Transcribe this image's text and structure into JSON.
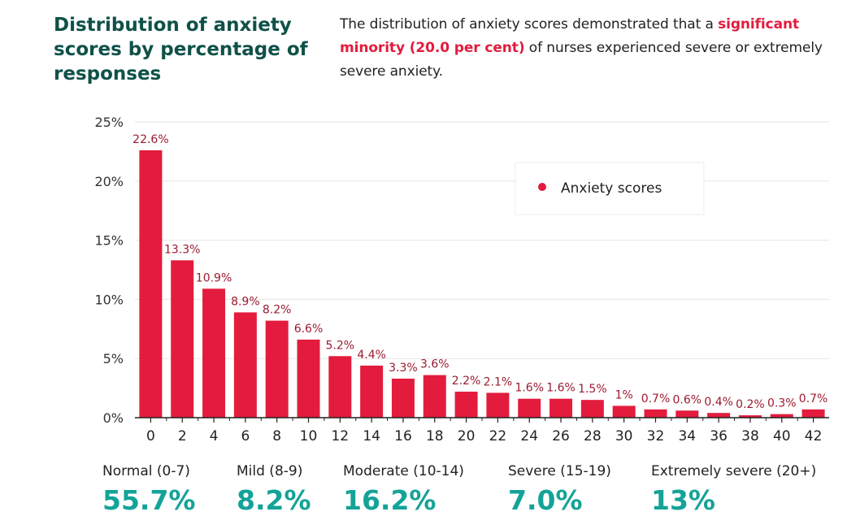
{
  "title": "Distribution of anxiety scores by percentage of responses",
  "description": {
    "before": "The distribution of anxiety scores demonstrated that a ",
    "highlight": "significant minority (20.0 per cent)",
    "after": " of nurses experienced severe or extremely severe anxiety."
  },
  "colors": {
    "bar": "#e31c3d",
    "title": "#0f5148",
    "summary_value": "#14a398",
    "label": "#9b1b2f"
  },
  "chart_data": {
    "type": "bar",
    "categories": [
      "0",
      "2",
      "4",
      "6",
      "8",
      "10",
      "12",
      "14",
      "16",
      "18",
      "20",
      "22",
      "24",
      "26",
      "28",
      "30",
      "32",
      "34",
      "36",
      "38",
      "40",
      "42"
    ],
    "series": [
      {
        "name": "Anxiety scores",
        "values": [
          22.6,
          13.3,
          10.9,
          8.9,
          8.2,
          6.6,
          5.2,
          4.4,
          3.3,
          3.6,
          2.2,
          2.1,
          1.6,
          1.6,
          1.5,
          1,
          0.7,
          0.6,
          0.4,
          0.2,
          0.3,
          0.7
        ],
        "labels": [
          "22.6%",
          "13.3%",
          "10.9%",
          "8.9%",
          "8.2%",
          "6.6%",
          "5.2%",
          "4.4%",
          "3.3%",
          "3.6%",
          "2.2%",
          "2.1%",
          "1.6%",
          "1.6%",
          "1.5%",
          "1%",
          "0.7%",
          "0.6%",
          "0.4%",
          "0.2%",
          "0.3%",
          "0.7%"
        ]
      }
    ],
    "ylim": [
      0,
      25
    ],
    "yticks": [
      "0%",
      "5%",
      "10%",
      "15%",
      "20%",
      "25%"
    ],
    "legend": "top-right",
    "grid": true
  },
  "summary": [
    {
      "label": "Normal (0-7)",
      "value": "55.7%"
    },
    {
      "label": "Mild (8-9)",
      "value": "8.2%"
    },
    {
      "label": "Moderate (10-14)",
      "value": "16.2%"
    },
    {
      "label": "Severe (15-19)",
      "value": "7.0%"
    },
    {
      "label": "Extremely severe (20+)",
      "value": "13%"
    }
  ]
}
